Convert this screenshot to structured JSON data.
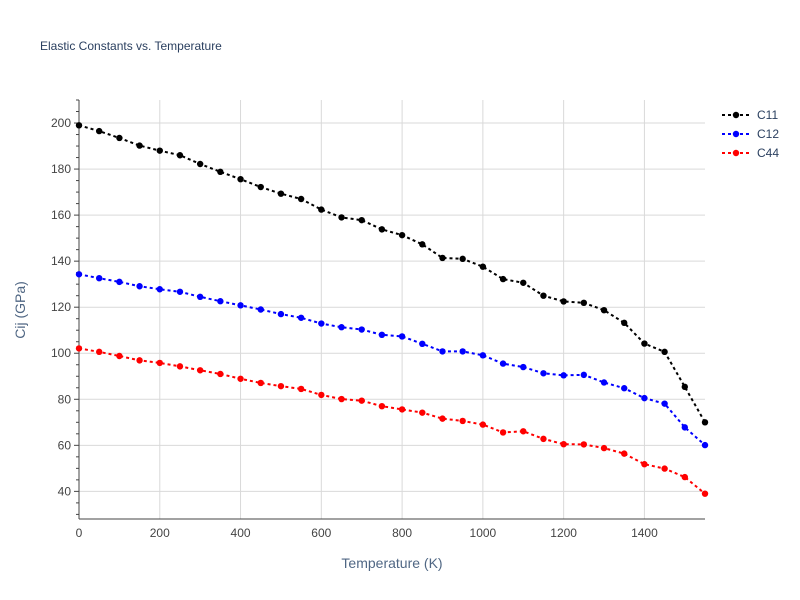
{
  "chart_data": {
    "type": "line",
    "title": "Elastic Constants vs. Temperature",
    "xlabel": "Temperature (K)",
    "ylabel": "Cij (GPa)",
    "xlim": [
      0,
      1550
    ],
    "ylim": [
      28,
      210
    ],
    "xticks": [
      0,
      200,
      400,
      600,
      800,
      1000,
      1200,
      1400
    ],
    "yticks": [
      40,
      60,
      80,
      100,
      120,
      140,
      160,
      180,
      200
    ],
    "grid": true,
    "legend_position": "top-right",
    "x": [
      0,
      50,
      100,
      150,
      200,
      250,
      300,
      350,
      400,
      450,
      500,
      550,
      600,
      650,
      700,
      750,
      800,
      850,
      900,
      950,
      1000,
      1050,
      1100,
      1150,
      1200,
      1250,
      1300,
      1350,
      1400,
      1450,
      1500,
      1550
    ],
    "series": [
      {
        "name": "C11",
        "color": "#000000",
        "values": [
          199.0,
          196.5,
          193.5,
          190.2,
          188.0,
          186.0,
          182.2,
          178.8,
          175.6,
          172.2,
          169.3,
          167.0,
          162.4,
          159.0,
          157.8,
          153.8,
          151.3,
          147.3,
          141.4,
          141.0,
          137.6,
          132.2,
          130.6,
          125.0,
          122.5,
          121.9,
          118.7,
          113.2,
          104.2,
          100.6,
          85.4,
          70.0
        ]
      },
      {
        "name": "C12",
        "color": "#0000ff",
        "values": [
          134.3,
          132.6,
          131.0,
          129.1,
          127.8,
          126.7,
          124.5,
          122.6,
          120.8,
          119.0,
          117.0,
          115.4,
          112.9,
          111.3,
          110.3,
          108.0,
          107.3,
          104.1,
          100.8,
          100.8,
          99.1,
          95.5,
          94.0,
          91.3,
          90.4,
          90.6,
          87.3,
          84.8,
          80.5,
          78.1,
          67.8,
          60.1
        ]
      },
      {
        "name": "C44",
        "color": "#ff0000",
        "values": [
          102.1,
          100.6,
          98.8,
          96.9,
          95.8,
          94.3,
          92.6,
          91.0,
          88.9,
          87.1,
          85.7,
          84.5,
          81.9,
          80.1,
          79.4,
          77.0,
          75.6,
          74.2,
          71.6,
          70.6,
          69.0,
          65.6,
          66.1,
          62.8,
          60.5,
          60.4,
          58.8,
          56.4,
          51.8,
          49.9,
          46.2,
          39.0
        ]
      }
    ]
  }
}
